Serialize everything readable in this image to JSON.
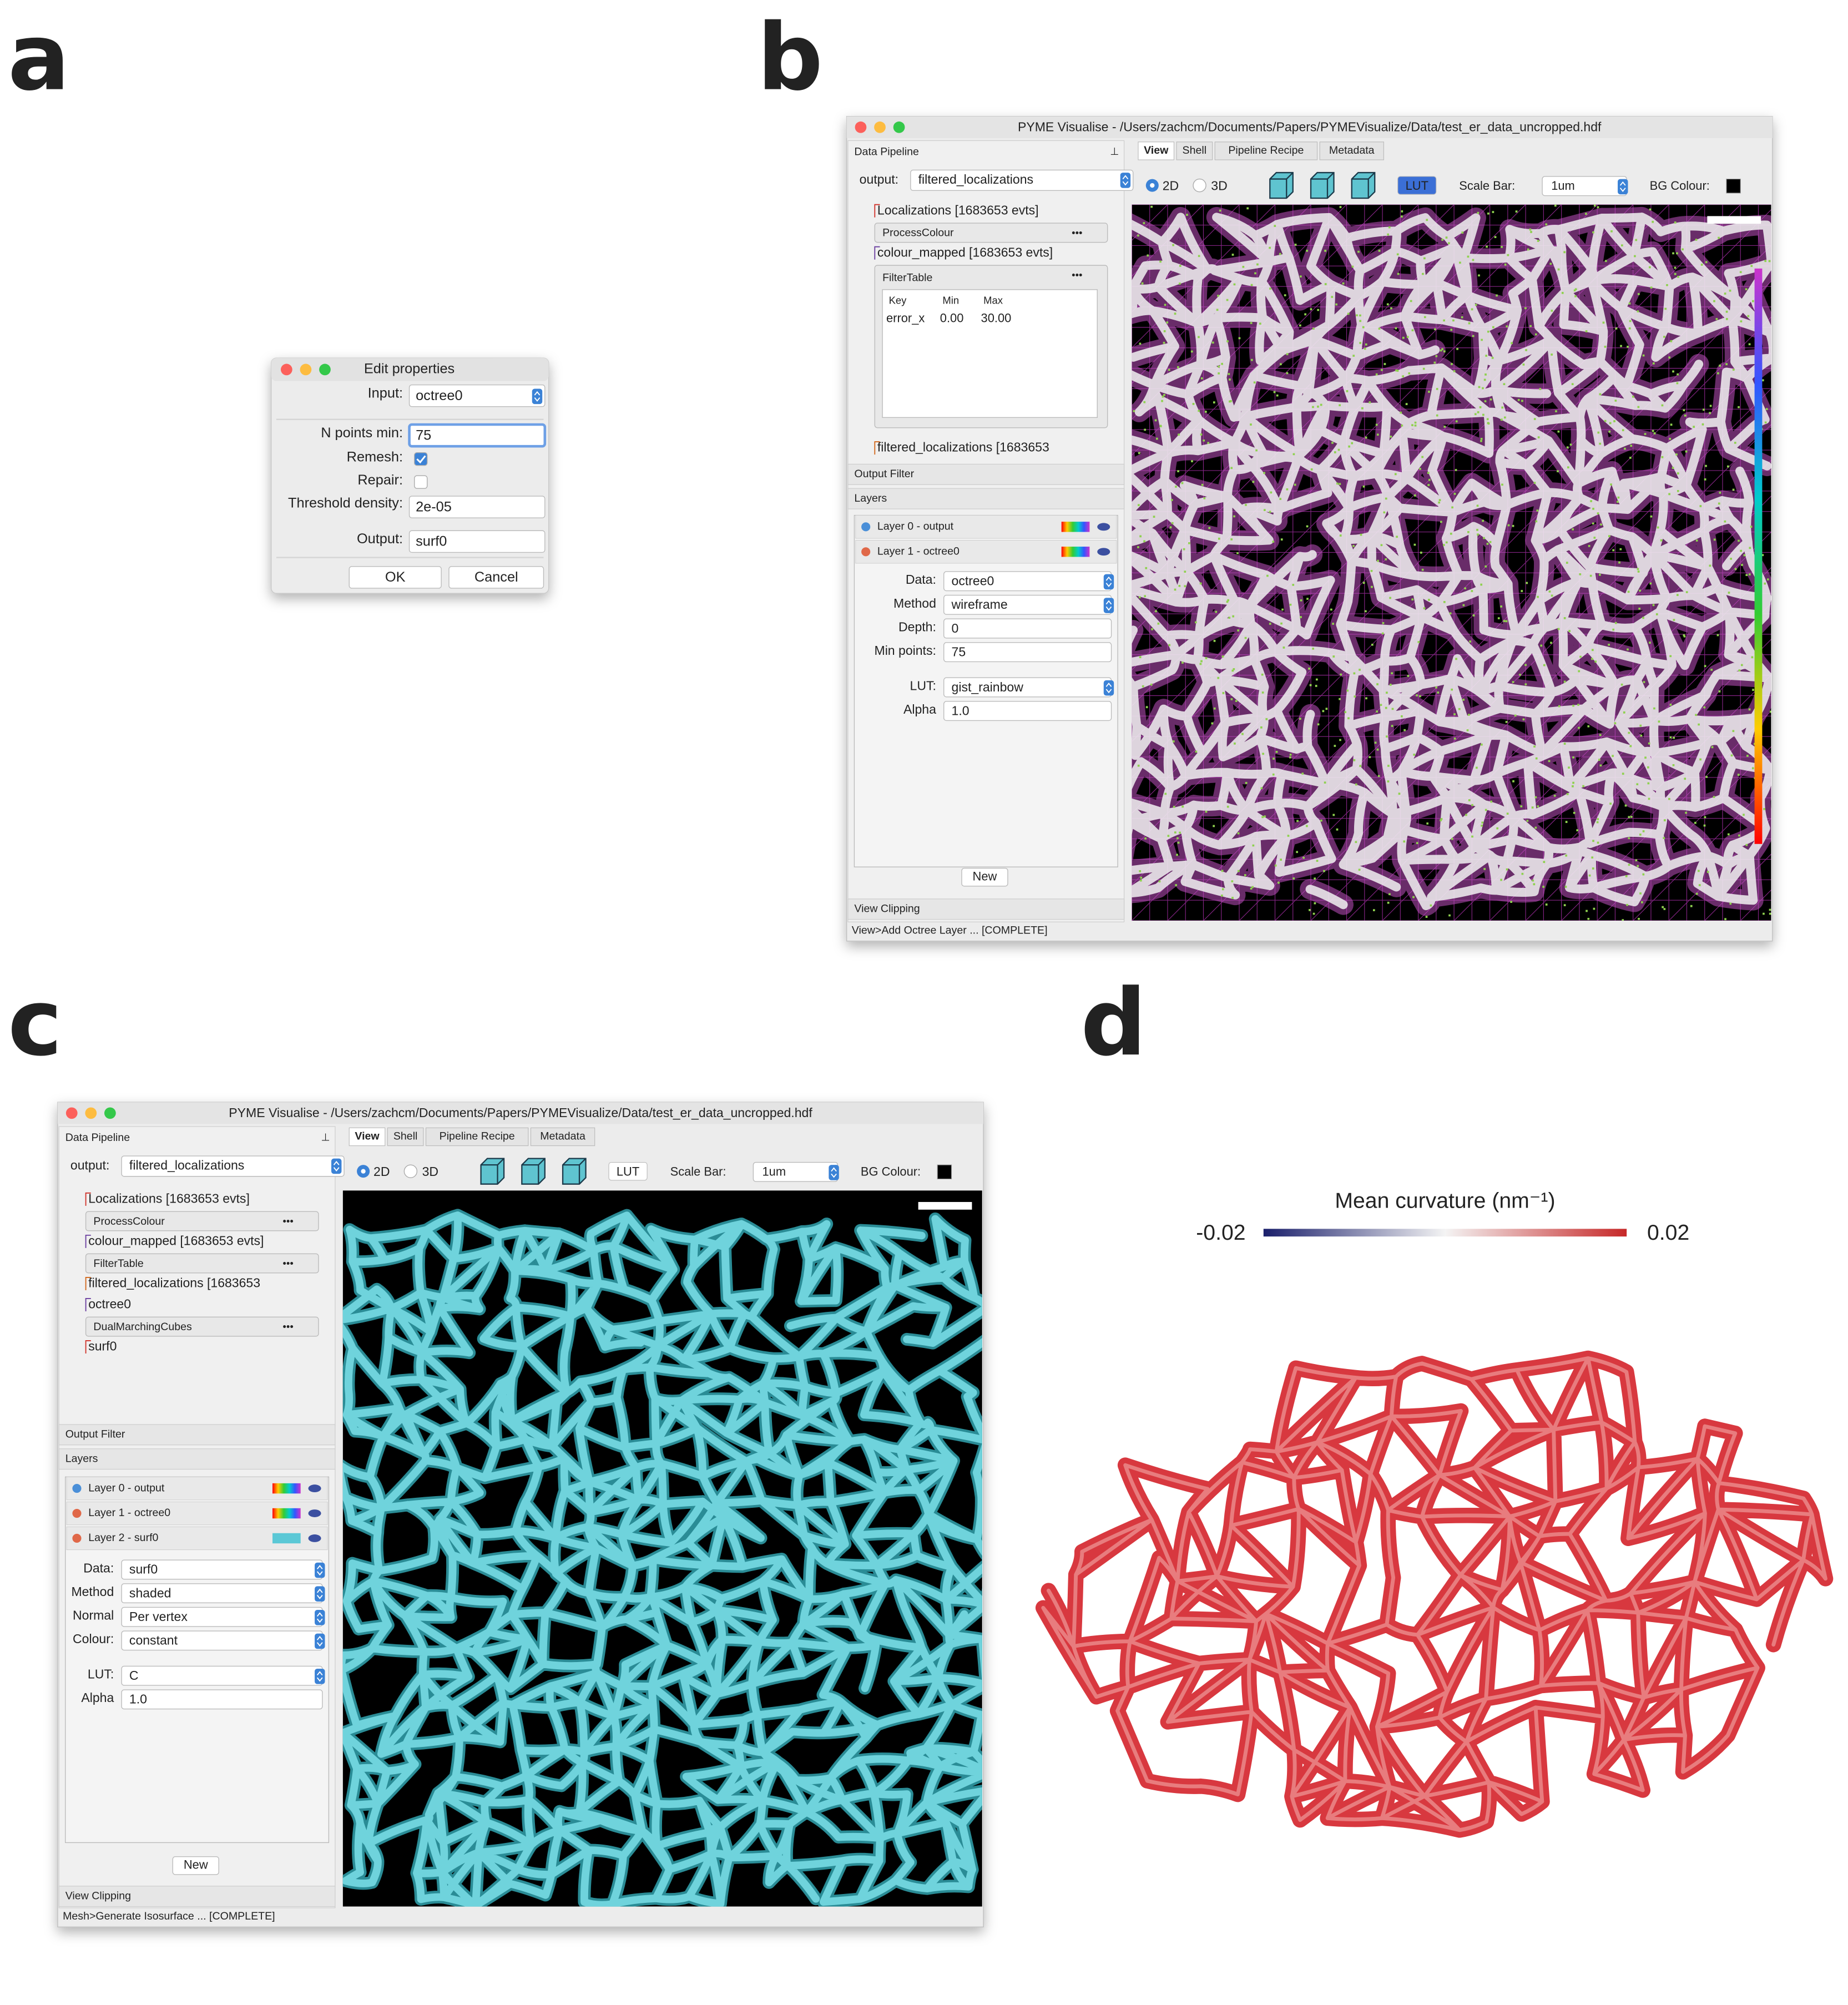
{
  "panel_labels": [
    "a",
    "b",
    "c",
    "d"
  ],
  "edit_dialog": {
    "title": "Edit properties",
    "fields": [
      {
        "label": "Input:",
        "value": "octree0",
        "kind": "select"
      },
      {
        "label": "N points min:",
        "value": "75",
        "kind": "text"
      },
      {
        "label": "Remesh:",
        "checked": true,
        "kind": "check"
      },
      {
        "label": "Repair:",
        "checked": false,
        "kind": "check"
      },
      {
        "label": "Threshold density:",
        "value": "2e-05",
        "kind": "text"
      },
      {
        "label": "Output:",
        "value": "surf0",
        "kind": "text"
      }
    ],
    "buttons": [
      "OK",
      "Cancel"
    ]
  },
  "window_b": {
    "title": "PYME Visualise - /Users/zachcm/Documents/Papers/PYMEVisualize/Data/test_er_data_uncropped.hdf",
    "pipeline_header": "Data Pipeline",
    "output_label": "output:",
    "output_value": "filtered_localizations",
    "pipeline": [
      {
        "text": "Localizations [1683653 evts]",
        "color": "#d0342c"
      },
      {
        "module": "ProcessColour"
      },
      {
        "text": "colour_mapped [1683653 evts]",
        "color": "#6b3fa0"
      },
      {
        "module": "FilterTable",
        "table": {
          "header": [
            "Key",
            "Min",
            "Max"
          ],
          "rows": [
            [
              "error_x",
              "0.00",
              "30.00"
            ]
          ]
        }
      },
      {
        "text": "filtered_localizations [1683653",
        "color": "#d2691e"
      }
    ],
    "tabs": [
      "View",
      "Shell",
      "Pipeline Recipe",
      "Metadata"
    ],
    "toolbar": {
      "mode_2d": "2D",
      "mode_3d": "3D",
      "lut": "LUT",
      "lut_selected": true,
      "scale_bar_label": "Scale Bar:",
      "scale_bar_value": "1um",
      "bg_label": "BG Colour:"
    },
    "output_filter": "Output Filter",
    "layers_header": "Layers",
    "layers": [
      {
        "name": "Layer 0 - output",
        "swatch": "rainbow"
      },
      {
        "name": "Layer 1 - octree0",
        "swatch": "rainbow"
      }
    ],
    "properties": [
      {
        "label": "Data:",
        "value": "octree0",
        "kind": "select"
      },
      {
        "label": "Method",
        "value": "wireframe",
        "kind": "select"
      },
      {
        "label": "Depth:",
        "value": "0",
        "kind": "text"
      },
      {
        "label": "Min points:",
        "value": "75",
        "kind": "text"
      },
      {
        "label": "LUT:",
        "value": "gist_rainbow",
        "kind": "select"
      },
      {
        "label": "Alpha",
        "value": "1.0",
        "kind": "text"
      }
    ],
    "new_button": "New",
    "view_clipping": "View Clipping",
    "status": "View>Add Octree Layer ... [COMPLETE]",
    "render": "octree"
  },
  "window_c": {
    "title": "PYME Visualise - /Users/zachcm/Documents/Papers/PYMEVisualize/Data/test_er_data_uncropped.hdf",
    "pipeline_header": "Data Pipeline",
    "output_label": "output:",
    "output_value": "filtered_localizations",
    "pipeline": [
      {
        "text": "Localizations [1683653 evts]",
        "color": "#d0342c"
      },
      {
        "module": "ProcessColour"
      },
      {
        "text": "colour_mapped [1683653 evts]",
        "color": "#6b3fa0"
      },
      {
        "module": "FilterTable"
      },
      {
        "text": "filtered_localizations [1683653",
        "color": "#d2691e"
      },
      {
        "text": "octree0",
        "color": "#6b3fa0"
      },
      {
        "module": "DualMarchingCubes"
      },
      {
        "text": "surf0",
        "color": "#d0342c"
      }
    ],
    "tabs": [
      "View",
      "Shell",
      "Pipeline Recipe",
      "Metadata"
    ],
    "toolbar": {
      "mode_2d": "2D",
      "mode_3d": "3D",
      "lut": "LUT",
      "lut_selected": false,
      "scale_bar_label": "Scale Bar:",
      "scale_bar_value": "1um",
      "bg_label": "BG Colour:"
    },
    "output_filter": "Output Filter",
    "layers_header": "Layers",
    "layers": [
      {
        "name": "Layer 0 - output",
        "swatch": "rainbow"
      },
      {
        "name": "Layer 1 - octree0",
        "swatch": "rainbow"
      },
      {
        "name": "Layer 2 - surf0",
        "swatch": "#5bc8d6"
      }
    ],
    "properties": [
      {
        "label": "Data:",
        "value": "surf0",
        "kind": "select"
      },
      {
        "label": "Method",
        "value": "shaded",
        "kind": "select"
      },
      {
        "label": "Normal",
        "value": "Per vertex",
        "kind": "select"
      },
      {
        "label": "Colour:",
        "value": "constant",
        "kind": "select"
      },
      {
        "label": "LUT:",
        "value": "C",
        "kind": "select"
      },
      {
        "label": "Alpha",
        "value": "1.0",
        "kind": "text"
      }
    ],
    "new_button": "New",
    "view_clipping": "View Clipping",
    "status": "Mesh>Generate Isosurface ... [COMPLETE]",
    "render": "surface"
  },
  "curvature_plot": {
    "title": "Mean curvature (nm⁻¹)",
    "min_label": "-0.02",
    "max_label": "0.02"
  }
}
